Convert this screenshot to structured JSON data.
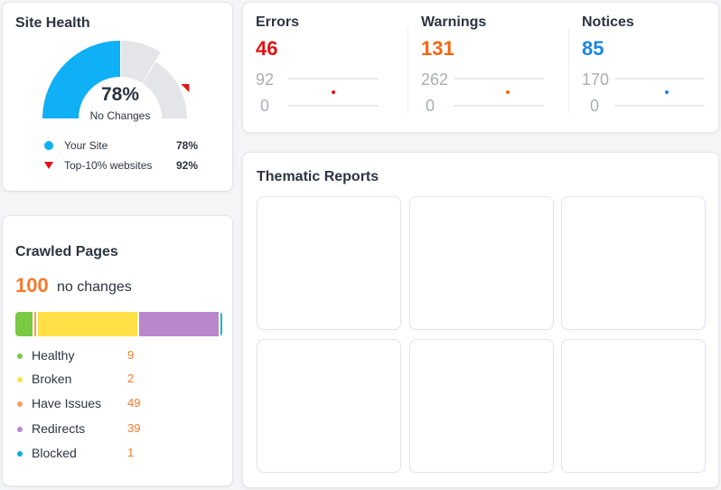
{
  "site_health": {
    "title": "Site Health",
    "percent": "78%",
    "subtitle": "No Changes",
    "score_value": 78,
    "benchmark_value": 92,
    "legend": [
      {
        "label": "Your Site",
        "value": "78%",
        "marker": "dot",
        "color": "#0fb0f5"
      },
      {
        "label": "Top-10% websites",
        "value": "92%",
        "marker": "triangle",
        "color": "#e01414"
      }
    ]
  },
  "crawled_pages": {
    "title": "Crawled Pages",
    "count": "100",
    "count_text": "no changes",
    "categories": [
      {
        "label": "Healthy",
        "value": "9",
        "color": "#7ac943"
      },
      {
        "label": "Broken",
        "value": "2",
        "color": "#ffe047"
      },
      {
        "label": "Have Issues",
        "value": "49",
        "color": "#f5a05a"
      },
      {
        "label": "Redirects",
        "value": "39",
        "color": "#b988cc"
      },
      {
        "label": "Blocked",
        "value": "1",
        "color": "#0ab3c9"
      }
    ],
    "bar_segments": [
      {
        "value": 9,
        "color": "#7ac943"
      },
      {
        "value": 2,
        "color": "#f5a05a"
      },
      {
        "value": 49,
        "color": "#ffe047"
      },
      {
        "value": 39,
        "color": "#b988cc"
      },
      {
        "value": 1,
        "color": "#0ab3c9"
      }
    ]
  },
  "issues": [
    {
      "label": "Errors",
      "count": "46",
      "color": "#e01414",
      "axis_max": "92",
      "axis_min": "0"
    },
    {
      "label": "Warnings",
      "count": "131",
      "color": "#f5650a",
      "axis_max": "262",
      "axis_min": "0"
    },
    {
      "label": "Notices",
      "count": "85",
      "color": "#1a86e6",
      "axis_max": "170",
      "axis_min": "0"
    }
  ],
  "thematic_reports": {
    "title": "Thematic Reports",
    "tiles": 6
  }
}
